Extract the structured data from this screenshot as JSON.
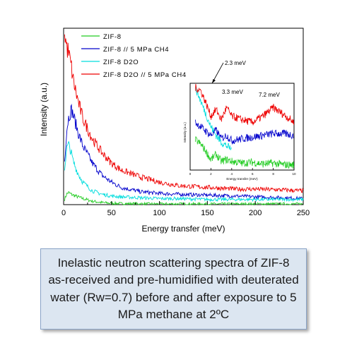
{
  "chart_data": [
    {
      "type": "line",
      "title": "",
      "xlabel": "Energy transfer (meV)",
      "ylabel": "Intensity (a.u.)",
      "xlim": [
        0,
        250
      ],
      "x_ticks": [
        0,
        50,
        100,
        150,
        200,
        250
      ],
      "legend_position": "top-left",
      "series": [
        {
          "name": "ZIF-8",
          "color": "#22cc22",
          "x": [
            1,
            3,
            5,
            8,
            10,
            15,
            20,
            30,
            40,
            50,
            60,
            80,
            100,
            120,
            150,
            180,
            200,
            230,
            250
          ],
          "values": [
            0.03,
            0.06,
            0.07,
            0.06,
            0.055,
            0.045,
            0.035,
            0.02,
            0.012,
            0.008,
            0.006,
            0.005,
            0.004,
            0.004,
            0.004,
            0.004,
            0.004,
            0.004,
            0.004
          ]
        },
        {
          "name": "ZIF-8 // 5 MPa CH4",
          "color": "#0000cc",
          "x": [
            1,
            3,
            5,
            8,
            10,
            15,
            20,
            30,
            40,
            50,
            60,
            80,
            100,
            120,
            150,
            180,
            200,
            230,
            250
          ],
          "values": [
            0.25,
            0.42,
            0.5,
            0.55,
            0.52,
            0.42,
            0.34,
            0.24,
            0.17,
            0.13,
            0.1,
            0.075,
            0.065,
            0.06,
            0.055,
            0.05,
            0.045,
            0.04,
            0.035
          ]
        },
        {
          "name": "ZIF-8 D2O",
          "color": "#00dddd",
          "x": [
            1,
            3,
            5,
            8,
            10,
            15,
            20,
            30,
            40,
            50,
            60,
            80,
            100,
            120,
            150,
            180,
            200,
            230,
            250
          ],
          "values": [
            0.2,
            0.32,
            0.35,
            0.3,
            0.25,
            0.18,
            0.13,
            0.08,
            0.06,
            0.05,
            0.045,
            0.04,
            0.035,
            0.035,
            0.03,
            0.03,
            0.03,
            0.03,
            0.03
          ]
        },
        {
          "name": "ZIF-8 D2O // 5 MPa CH4",
          "color": "#ee0000",
          "x": [
            1,
            3,
            5,
            8,
            10,
            15,
            20,
            30,
            40,
            50,
            60,
            80,
            100,
            120,
            150,
            180,
            200,
            230,
            250
          ],
          "values": [
            1.0,
            0.92,
            0.88,
            0.8,
            0.72,
            0.6,
            0.5,
            0.38,
            0.3,
            0.24,
            0.2,
            0.16,
            0.13,
            0.11,
            0.1,
            0.09,
            0.09,
            0.085,
            0.08
          ]
        }
      ]
    },
    {
      "type": "line",
      "title": "",
      "xlabel": "Energy transfer (meV)",
      "ylabel": "Intensity (a.u.)",
      "xlim": [
        0,
        10
      ],
      "x_ticks": [
        0,
        2,
        4,
        6,
        8,
        10
      ],
      "annotations": [
        "2.3 meV",
        "3.3 meV",
        "7.2 meV"
      ],
      "series": [
        {
          "name": "ZIF-8",
          "color": "#22cc22",
          "x": [
            0.5,
            1,
            1.5,
            2,
            2.5,
            3,
            3.5,
            4,
            5,
            6,
            7,
            8,
            9,
            10
          ],
          "values": [
            0.35,
            0.3,
            0.22,
            0.12,
            0.18,
            0.1,
            0.12,
            0.1,
            0.08,
            0.09,
            0.07,
            0.08,
            0.06,
            0.06
          ]
        },
        {
          "name": "ZIF-8 // 5 MPa CH4",
          "color": "#0000cc",
          "x": [
            0.5,
            1,
            1.5,
            2,
            2.5,
            3,
            3.5,
            4,
            5,
            6,
            7,
            8,
            9,
            10
          ],
          "values": [
            0.55,
            0.5,
            0.45,
            0.4,
            0.46,
            0.36,
            0.4,
            0.34,
            0.36,
            0.38,
            0.4,
            0.42,
            0.42,
            0.4
          ]
        },
        {
          "name": "ZIF-8 D2O",
          "color": "#00dddd",
          "x": [
            0.5,
            1,
            1.5,
            2,
            2.5,
            3,
            3.5,
            4
          ],
          "values": [
            0.95,
            0.8,
            0.65,
            0.5,
            0.4,
            0.32,
            0.28,
            0.24
          ]
        },
        {
          "name": "ZIF-8 D2O // 5 MPa CH4",
          "color": "#ee0000",
          "x": [
            0.5,
            1,
            1.5,
            2,
            2.5,
            3,
            3.5,
            4,
            5,
            6,
            7,
            8,
            9,
            10
          ],
          "values": [
            0.95,
            0.92,
            0.78,
            0.62,
            0.7,
            0.58,
            0.72,
            0.62,
            0.58,
            0.55,
            0.62,
            0.72,
            0.64,
            0.55
          ]
        }
      ]
    }
  ],
  "caption": "Inelastic neutron scattering spectra of ZIF-8 as-received and pre-humidified with deuterated water (Rw=0.7) before and after exposure to 5 MPa methane at 2ºC"
}
